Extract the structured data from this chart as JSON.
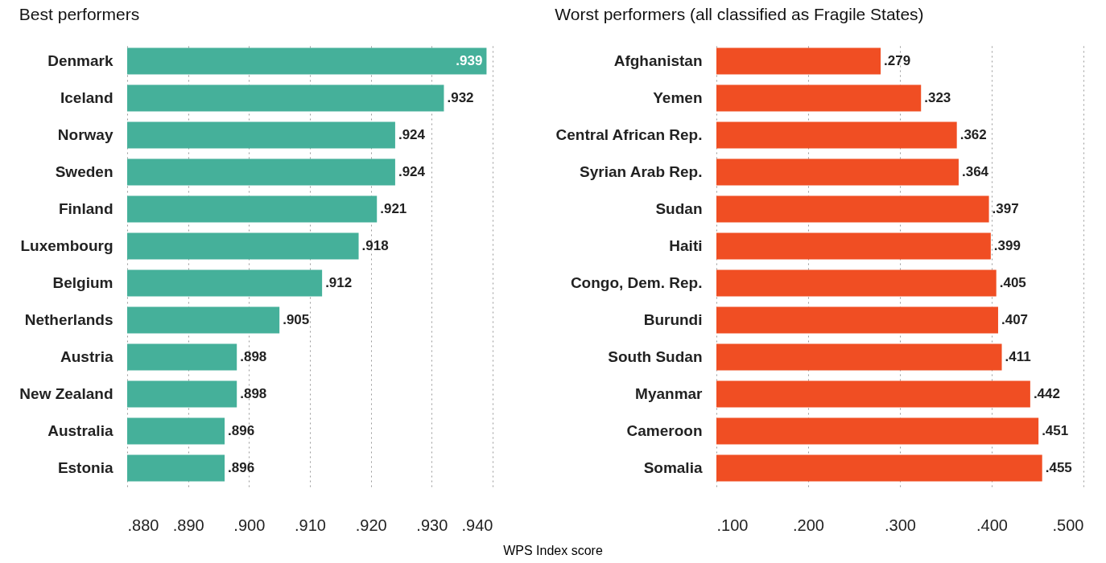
{
  "chart_data": [
    {
      "type": "bar",
      "orientation": "horizontal",
      "title": "Best performers",
      "xlabel": "WPS Index score",
      "categories": [
        "Denmark",
        "Iceland",
        "Norway",
        "Sweden",
        "Finland",
        "Luxembourg",
        "Belgium",
        "Netherlands",
        "Austria",
        "New Zealand",
        "Australia",
        "Estonia"
      ],
      "values": [
        0.939,
        0.932,
        0.924,
        0.924,
        0.921,
        0.918,
        0.912,
        0.905,
        0.898,
        0.898,
        0.896,
        0.896
      ],
      "value_labels": [
        ".939",
        ".932",
        ".924",
        ".924",
        ".921",
        ".918",
        ".912",
        ".905",
        ".898",
        ".898",
        ".896",
        ".896"
      ],
      "color": "#45b09a",
      "xlim": [
        0.88,
        0.94
      ],
      "xticks": [
        {
          "value": 0.88,
          "label": ".880"
        },
        {
          "value": 0.89,
          "label": ".890"
        },
        {
          "value": 0.9,
          "label": ".900"
        },
        {
          "value": 0.91,
          "label": ".910"
        },
        {
          "value": 0.92,
          "label": ".920"
        },
        {
          "value": 0.93,
          "label": ".930"
        },
        {
          "value": 0.94,
          "label": ".940"
        }
      ],
      "grid": "x"
    },
    {
      "type": "bar",
      "orientation": "horizontal",
      "title": "Worst performers (all classified as Fragile States)",
      "categories": [
        "Afghanistan",
        "Yemen",
        "Central African Rep.",
        "Syrian Arab Rep.",
        "Sudan",
        "Haiti",
        "Congo, Dem. Rep.",
        "Burundi",
        "South Sudan",
        "Myanmar",
        "Cameroon",
        "Somalia"
      ],
      "values": [
        0.279,
        0.323,
        0.362,
        0.364,
        0.397,
        0.399,
        0.405,
        0.407,
        0.411,
        0.442,
        0.451,
        0.455
      ],
      "value_labels": [
        ".279",
        ".323",
        ".362",
        ".364",
        ".397",
        ".399",
        ".405",
        ".407",
        ".411",
        ".442",
        ".451",
        ".455"
      ],
      "color": "#f04e23",
      "xlim": [
        0.1,
        0.5
      ],
      "xticks": [
        {
          "value": 0.1,
          "label": ".100"
        },
        {
          "value": 0.2,
          "label": ".200"
        },
        {
          "value": 0.3,
          "label": ".300"
        },
        {
          "value": 0.4,
          "label": ".400"
        },
        {
          "value": 0.5,
          "label": ".500"
        }
      ],
      "grid": "x"
    }
  ]
}
